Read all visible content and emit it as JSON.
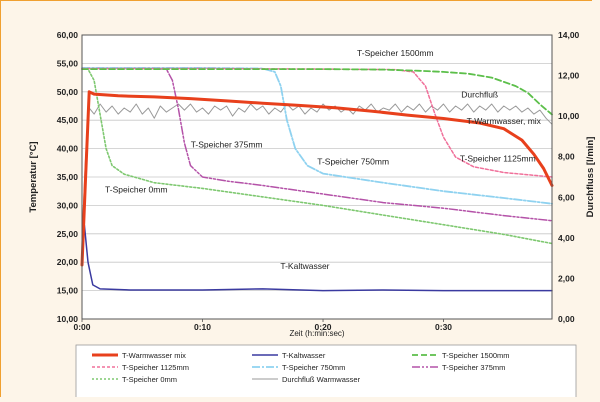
{
  "chart_data": {
    "type": "line",
    "xlabel": "Zeit (h:min:sec)",
    "ylabel": "Temperatur [°C]",
    "y2label": "Durchfluss [l/min]",
    "x_ticks": [
      "0:00",
      "0:10",
      "0:20",
      "0:30"
    ],
    "x_tick_values_min": [
      0,
      10,
      20,
      30
    ],
    "xlim_min": [
      0,
      39
    ],
    "y_ticks": [
      "10,00",
      "15,00",
      "20,00",
      "25,00",
      "30,00",
      "35,00",
      "40,00",
      "45,00",
      "50,00",
      "55,00",
      "60,00"
    ],
    "ylim": [
      10,
      60
    ],
    "y2_ticks": [
      "0,00",
      "2,00",
      "4,00",
      "6,00",
      "8,00",
      "10,00",
      "12,00",
      "14,00"
    ],
    "y2lim": [
      0,
      14
    ],
    "grid": "horizontal",
    "legend_position": "bottom",
    "colors": {
      "warmwasser": "#e8401c",
      "kaltwasser": "#3a3aa0",
      "t1500": "#5cbf4a",
      "t1125": "#f0709a",
      "t750": "#8fd2f0",
      "t375": "#b452a8",
      "t0": "#7ec870",
      "durchfluss": "#9a9a9a"
    },
    "series": [
      {
        "name": "T-Warmwasser mix",
        "key": "warmwasser",
        "axis": "left",
        "dash": "",
        "width": 3,
        "points": [
          [
            0,
            19.5
          ],
          [
            0.3,
            35
          ],
          [
            0.6,
            50
          ],
          [
            1,
            49.6
          ],
          [
            3,
            49.3
          ],
          [
            6,
            49.1
          ],
          [
            9,
            48.8
          ],
          [
            12,
            48.4
          ],
          [
            15,
            48
          ],
          [
            18,
            47.6
          ],
          [
            21,
            47.2
          ],
          [
            24,
            46.6
          ],
          [
            27,
            45.9
          ],
          [
            30,
            45.3
          ],
          [
            33,
            44.5
          ],
          [
            35,
            43.5
          ],
          [
            36.5,
            41.5
          ],
          [
            37.5,
            39
          ],
          [
            38.3,
            36.5
          ],
          [
            39,
            33.5
          ]
        ]
      },
      {
        "name": "T-Kaltwasser",
        "key": "kaltwasser",
        "axis": "left",
        "dash": "",
        "width": 1.5,
        "points": [
          [
            0,
            20
          ],
          [
            0.2,
            26.5
          ],
          [
            0.5,
            20
          ],
          [
            0.9,
            16
          ],
          [
            1.5,
            15.3
          ],
          [
            4,
            15.1
          ],
          [
            10,
            15.1
          ],
          [
            15,
            15.3
          ],
          [
            20,
            15
          ],
          [
            25,
            15.1
          ],
          [
            30,
            15
          ],
          [
            39,
            15
          ]
        ]
      },
      {
        "name": "T-Speicher 1500mm",
        "key": "t1500",
        "axis": "left",
        "dash": "6,3",
        "width": 1.8,
        "points": [
          [
            0,
            54
          ],
          [
            5,
            54
          ],
          [
            10,
            54
          ],
          [
            15,
            54
          ],
          [
            20,
            54
          ],
          [
            25,
            53.9
          ],
          [
            28,
            53.7
          ],
          [
            30,
            53.5
          ],
          [
            32,
            53.2
          ],
          [
            34,
            52.5
          ],
          [
            36,
            51
          ],
          [
            37,
            49.8
          ],
          [
            38,
            47.8
          ],
          [
            39,
            46
          ]
        ]
      },
      {
        "name": "T-Speicher 1125mm",
        "key": "t1125",
        "axis": "left",
        "dash": "3,2",
        "width": 1.5,
        "points": [
          [
            0,
            54.1
          ],
          [
            10,
            54.1
          ],
          [
            20,
            54
          ],
          [
            26,
            53.9
          ],
          [
            27.5,
            53.5
          ],
          [
            28.5,
            51
          ],
          [
            29.3,
            46
          ],
          [
            30,
            42
          ],
          [
            31,
            38.5
          ],
          [
            32.5,
            36.8
          ],
          [
            35,
            35.8
          ],
          [
            39,
            35
          ]
        ]
      },
      {
        "name": "T-Speicher 750mm",
        "key": "t750",
        "axis": "left",
        "dash": "8,2,2,2",
        "width": 1.8,
        "points": [
          [
            0,
            54.2
          ],
          [
            10,
            54.2
          ],
          [
            15,
            54.1
          ],
          [
            16,
            53.5
          ],
          [
            16.5,
            51
          ],
          [
            17,
            45
          ],
          [
            17.7,
            40
          ],
          [
            18.7,
            37
          ],
          [
            20,
            35.6
          ],
          [
            25,
            34
          ],
          [
            30,
            32.5
          ],
          [
            35,
            31.3
          ],
          [
            39,
            30.3
          ]
        ]
      },
      {
        "name": "T-Speicher 375mm",
        "key": "t375",
        "axis": "left",
        "dash": "8,2,2,2,2,2",
        "width": 1.5,
        "points": [
          [
            0,
            54.1
          ],
          [
            5,
            54.1
          ],
          [
            7,
            54
          ],
          [
            7.5,
            52
          ],
          [
            8,
            47
          ],
          [
            8.5,
            41
          ],
          [
            9,
            37
          ],
          [
            10,
            35
          ],
          [
            12,
            34.3
          ],
          [
            15,
            33.5
          ],
          [
            20,
            32
          ],
          [
            25,
            30.5
          ],
          [
            30,
            29.5
          ],
          [
            35,
            28.2
          ],
          [
            39,
            27.3
          ]
        ]
      },
      {
        "name": "T-Speicher 0mm",
        "key": "t0",
        "axis": "left",
        "dash": "2,2",
        "width": 1.6,
        "points": [
          [
            0,
            54
          ],
          [
            0.5,
            54
          ],
          [
            1,
            52
          ],
          [
            1.5,
            46
          ],
          [
            2,
            40
          ],
          [
            2.5,
            37
          ],
          [
            3.5,
            35.5
          ],
          [
            6,
            34
          ],
          [
            10,
            33
          ],
          [
            15,
            31.5
          ],
          [
            20,
            30
          ],
          [
            25,
            28.3
          ],
          [
            30,
            26.6
          ],
          [
            35,
            24.9
          ],
          [
            39,
            23.3
          ]
        ]
      },
      {
        "name": "Durchfluß Warmwasser",
        "key": "durchfluss",
        "axis": "right",
        "dash": "",
        "width": 1,
        "points": [
          [
            0,
            4
          ],
          [
            0.3,
            8
          ],
          [
            0.6,
            10.4
          ],
          [
            1,
            10.1
          ],
          [
            1.5,
            10.6
          ],
          [
            2,
            10.2
          ],
          [
            2.5,
            10.5
          ],
          [
            3,
            10.1
          ],
          [
            3.5,
            10.4
          ],
          [
            4,
            10.2
          ],
          [
            4.5,
            10.6
          ],
          [
            5,
            10.1
          ],
          [
            5.5,
            10.4
          ],
          [
            6,
            9.9
          ],
          [
            6.5,
            10.5
          ],
          [
            7,
            10.2
          ],
          [
            7.5,
            10.4
          ],
          [
            8,
            10.6
          ],
          [
            8.5,
            10.3
          ],
          [
            9,
            10.6
          ],
          [
            9.5,
            10.2
          ],
          [
            10,
            10.4
          ],
          [
            10.5,
            10.1
          ],
          [
            11,
            10.5
          ],
          [
            11.5,
            10.3
          ],
          [
            12,
            10.5
          ],
          [
            12.5,
            10
          ],
          [
            13,
            10.4
          ],
          [
            13.5,
            10.2
          ],
          [
            14,
            10.6
          ],
          [
            14.5,
            10.3
          ],
          [
            15,
            10.5
          ],
          [
            15.5,
            10.1
          ],
          [
            16,
            10.4
          ],
          [
            16.5,
            10.2
          ],
          [
            17,
            10.6
          ],
          [
            17.5,
            10.3
          ],
          [
            18,
            10.5
          ],
          [
            18.5,
            10.1
          ],
          [
            19,
            10.4
          ],
          [
            19.5,
            10.2
          ],
          [
            20,
            10.6
          ],
          [
            20.5,
            10.3
          ],
          [
            21,
            10.5
          ],
          [
            21.5,
            10.2
          ],
          [
            22,
            10.4
          ],
          [
            22.5,
            10.1
          ],
          [
            23,
            10.5
          ],
          [
            23.5,
            10.3
          ],
          [
            24,
            10.6
          ],
          [
            24.5,
            10.2
          ],
          [
            25,
            10.4
          ],
          [
            25.5,
            10.3
          ],
          [
            26,
            10.6
          ],
          [
            26.5,
            10.2
          ],
          [
            27,
            10.5
          ],
          [
            27.5,
            10.3
          ],
          [
            28,
            10.6
          ],
          [
            28.5,
            10.2
          ],
          [
            29,
            10.5
          ],
          [
            29.5,
            10.3
          ],
          [
            30,
            10.6
          ],
          [
            30.5,
            10.2
          ],
          [
            31,
            10.5
          ],
          [
            31.5,
            10.3
          ],
          [
            32,
            10.6
          ],
          [
            32.5,
            10.2
          ],
          [
            33,
            10.5
          ],
          [
            33.5,
            10.3
          ],
          [
            34,
            10.6
          ],
          [
            34.5,
            10.2
          ],
          [
            35,
            10.5
          ],
          [
            35.5,
            10.3
          ],
          [
            36,
            10.5
          ],
          [
            36.5,
            10.2
          ],
          [
            37,
            10.4
          ],
          [
            37.5,
            10.1
          ],
          [
            38,
            10.3
          ],
          [
            38.5,
            9.9
          ],
          [
            39,
            9.6
          ]
        ]
      }
    ],
    "annotations": [
      {
        "text": "T-Speicher 1500mm",
        "x": 26,
        "y": 56.3,
        "anchor": "middle"
      },
      {
        "text": "Durchfluß",
        "x": 33,
        "y": 49,
        "anchor": "middle"
      },
      {
        "text": "T-Warmwasser, mix",
        "x": 35,
        "y": 44.3,
        "anchor": "middle"
      },
      {
        "text": "T-Speicher 375mm",
        "x": 12,
        "y": 40.2,
        "anchor": "middle"
      },
      {
        "text": "T-Speicher 750mm",
        "x": 22.5,
        "y": 37.2,
        "anchor": "middle"
      },
      {
        "text": "T-Speicher 1125mm",
        "x": 34.5,
        "y": 37.7,
        "anchor": "middle"
      },
      {
        "text": "T-Speicher 0mm",
        "x": 4.5,
        "y": 32.3,
        "anchor": "middle"
      },
      {
        "text": "T-Kaltwasser",
        "x": 18.5,
        "y": 18.8,
        "anchor": "middle"
      }
    ],
    "legend": [
      {
        "label": "T-Warmwasser mix",
        "key": "warmwasser",
        "dash": "",
        "width": 3
      },
      {
        "label": "T-Kaltwasser",
        "key": "kaltwasser",
        "dash": "",
        "width": 1.5
      },
      {
        "label": "T-Speicher 1500mm",
        "key": "t1500",
        "dash": "6,3",
        "width": 1.8
      },
      {
        "label": "T-Speicher 1125mm",
        "key": "t1125",
        "dash": "3,2",
        "width": 1.5
      },
      {
        "label": "T-Speicher 750mm",
        "key": "t750",
        "dash": "8,2,2,2",
        "width": 1.8
      },
      {
        "label": "T-Speicher 375mm",
        "key": "t375",
        "dash": "8,2,2,2,2,2",
        "width": 1.5
      },
      {
        "label": "T-Speicher 0mm",
        "key": "t0",
        "dash": "2,2",
        "width": 1.6
      },
      {
        "label": "Durchfluß Warmwasser",
        "key": "durchfluss",
        "dash": "",
        "width": 1
      }
    ]
  }
}
